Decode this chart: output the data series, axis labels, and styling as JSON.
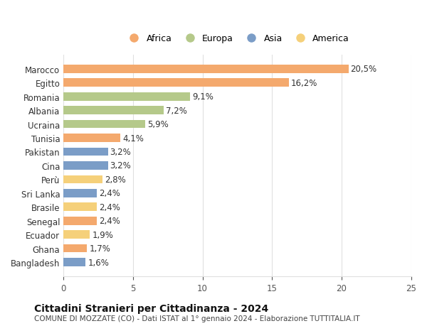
{
  "title": "Cittadini Stranieri per Cittadinanza - 2024",
  "subtitle": "COMUNE DI MOZZATE (CO) - Dati ISTAT al 1° gennaio 2024 - Elaborazione TUTTITALIA.IT",
  "countries": [
    "Bangladesh",
    "Ghana",
    "Ecuador",
    "Senegal",
    "Brasile",
    "Sri Lanka",
    "Perù",
    "Cina",
    "Pakistan",
    "Tunisia",
    "Ucraina",
    "Albania",
    "Romania",
    "Egitto",
    "Marocco"
  ],
  "values": [
    1.6,
    1.7,
    1.9,
    2.4,
    2.4,
    2.4,
    2.8,
    3.2,
    3.2,
    4.1,
    5.9,
    7.2,
    9.1,
    16.2,
    20.5
  ],
  "continents": [
    "Asia",
    "Africa",
    "America",
    "Africa",
    "America",
    "Asia",
    "America",
    "Asia",
    "Asia",
    "Africa",
    "Europa",
    "Europa",
    "Europa",
    "Africa",
    "Africa"
  ],
  "colors": {
    "Africa": "#F4A96D",
    "Europa": "#B5C98A",
    "Asia": "#7B9DC7",
    "America": "#F5D07A"
  },
  "legend_order": [
    "Africa",
    "Europa",
    "Asia",
    "America"
  ],
  "xlim": [
    0,
    25
  ],
  "xticks": [
    0,
    5,
    10,
    15,
    20,
    25
  ],
  "bar_height": 0.6,
  "figsize": [
    6.0,
    4.6
  ],
  "dpi": 100,
  "bg_color": "#ffffff",
  "grid_color": "#e0e0e0",
  "label_fontsize": 8.5,
  "tick_fontsize": 8.5,
  "title_fontsize": 10,
  "subtitle_fontsize": 7.5,
  "legend_fontsize": 9
}
